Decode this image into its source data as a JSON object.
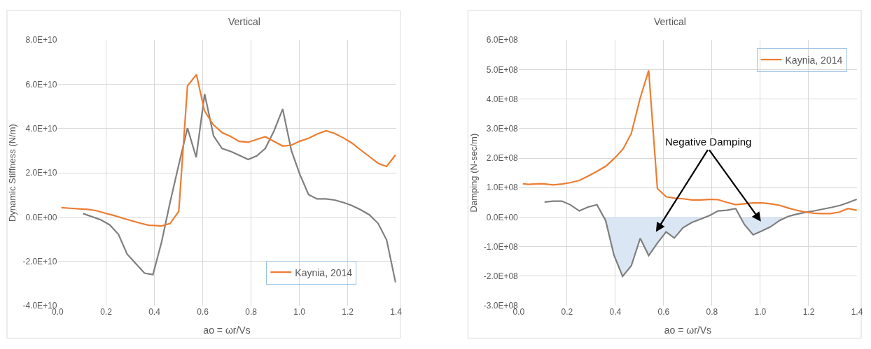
{
  "chart_data": [
    {
      "type": "line",
      "title": "Vertical",
      "xlabel": "ao = ωr/Vs",
      "ylabel": "Dynamic Stiffness (N/m)",
      "xlim": [
        0,
        1.4
      ],
      "xticks": [
        {
          "value": 0,
          "label": "0.0"
        },
        {
          "value": 0.2,
          "label": "0.2"
        },
        {
          "value": 0.4,
          "label": "0.4"
        },
        {
          "value": 0.6,
          "label": "0.6"
        },
        {
          "value": 0.8,
          "label": "0.8"
        },
        {
          "value": 1.0,
          "label": "1.0"
        },
        {
          "value": 1.2,
          "label": "1.2"
        },
        {
          "value": 1.4,
          "label": "1.4"
        }
      ],
      "ylim": [
        -40000000000.0,
        80000000000.0
      ],
      "yticks": [
        {
          "value": -40000000000.0,
          "label": "-4.0E+10"
        },
        {
          "value": -20000000000.0,
          "label": "-2.0E+10"
        },
        {
          "value": 0,
          "label": "0.0E+00"
        },
        {
          "value": 20000000000.0,
          "label": "2.0E+10"
        },
        {
          "value": 40000000000.0,
          "label": "4.0E+10"
        },
        {
          "value": 60000000000.0,
          "label": "6.0E+10"
        },
        {
          "value": 80000000000.0,
          "label": "8.0E+10"
        }
      ],
      "grid": true,
      "legend": "bottom right",
      "line_style": "solid",
      "marker": "none",
      "series": [
        {
          "color": "#7f7f7f",
          "x": [
            0.105,
            0.178,
            0.215,
            0.251,
            0.287,
            0.322,
            0.359,
            0.394,
            0.43,
            0.465,
            0.501,
            0.537,
            0.573,
            0.608,
            0.645,
            0.68,
            0.716,
            0.751,
            0.788,
            0.824,
            0.859,
            0.895,
            0.931,
            0.967,
            1.002,
            1.038,
            1.073,
            1.11,
            1.146,
            1.182,
            1.218,
            1.254,
            1.29,
            1.326,
            1.361,
            1.398
          ],
          "values": [
            1600000000.0,
            -1200000000.0,
            -3500000000.0,
            -7700000000.0,
            -16700000000.0,
            -20900000000.0,
            -25300000000.0,
            -26000000000.0,
            -11200000000.0,
            6700000000.0,
            23700000000.0,
            40200000000.0,
            27000000000.0,
            55600000000.0,
            36700000000.0,
            31000000000.0,
            29700000000.0,
            27900000000.0,
            26000000000.0,
            27700000000.0,
            31000000000.0,
            38900000000.0,
            48800000000.0,
            30000000000.0,
            19300000000.0,
            10200000000.0,
            8200000000.0,
            8200000000.0,
            7700000000.0,
            6600000000.0,
            5200000000.0,
            3300000000.0,
            1000000000.0,
            -2900000000.0,
            -10300000000.0,
            -29500000000.0
          ]
        },
        {
          "name": "Kaynia, 2014",
          "color": "#ed7d31",
          "x": [
            0.015,
            0.05,
            0.088,
            0.124,
            0.16,
            0.196,
            0.233,
            0.269,
            0.305,
            0.341,
            0.377,
            0.399,
            0.429,
            0.465,
            0.501,
            0.537,
            0.574,
            0.607,
            0.643,
            0.68,
            0.716,
            0.751,
            0.788,
            0.824,
            0.859,
            0.895,
            0.931,
            0.967,
            1.002,
            1.038,
            1.073,
            1.11,
            1.146,
            1.182,
            1.218,
            1.254,
            1.29,
            1.326,
            1.361,
            1.398
          ],
          "values": [
            4300000000.0,
            4000000000.0,
            3700000000.0,
            3500000000.0,
            2900000000.0,
            1800000000.0,
            700000000.0,
            -500000000.0,
            -1600000000.0,
            -2700000000.0,
            -3700000000.0,
            -3800000000.0,
            -4000000000.0,
            -2900000000.0,
            2600000000.0,
            59300000000.0,
            64400000000.0,
            48100000000.0,
            41800000000.0,
            38200000000.0,
            36400000000.0,
            34200000000.0,
            33800000000.0,
            35100000000.0,
            36300000000.0,
            34200000000.0,
            32100000000.0,
            32500000000.0,
            34300000000.0,
            35600000000.0,
            37500000000.0,
            39000000000.0,
            37800000000.0,
            35800000000.0,
            33400000000.0,
            30300000000.0,
            27300000000.0,
            24300000000.0,
            22900000000.0,
            28100000000.0
          ]
        }
      ]
    },
    {
      "type": "line",
      "title": "Vertical",
      "xlabel": "ao = ωr/Vs",
      "ylabel": "Damping (N-sec/m)",
      "xlim": [
        0,
        1.4
      ],
      "xticks": [
        {
          "value": 0,
          "label": "0.0"
        },
        {
          "value": 0.2,
          "label": "0.2"
        },
        {
          "value": 0.4,
          "label": "0.4"
        },
        {
          "value": 0.6,
          "label": "0.6"
        },
        {
          "value": 0.8,
          "label": "0.8"
        },
        {
          "value": 1.0,
          "label": "1.0"
        },
        {
          "value": 1.2,
          "label": "1.2"
        },
        {
          "value": 1.4,
          "label": "1.4"
        }
      ],
      "ylim": [
        -300000000.0,
        600000000.0
      ],
      "yticks": [
        {
          "value": -300000000.0,
          "label": "-3.0E+08"
        },
        {
          "value": -200000000.0,
          "label": "-2.0E+08"
        },
        {
          "value": -100000000.0,
          "label": "-1.0E+08"
        },
        {
          "value": 0,
          "label": "0.0E+00"
        },
        {
          "value": 100000000.0,
          "label": "1.0E+08"
        },
        {
          "value": 200000000.0,
          "label": "2.0E+08"
        },
        {
          "value": 300000000.0,
          "label": "3.0E+08"
        },
        {
          "value": 400000000.0,
          "label": "4.0E+08"
        },
        {
          "value": 500000000.0,
          "label": "5.0E+08"
        },
        {
          "value": 600000000.0,
          "label": "6.0E+08"
        }
      ],
      "grid": true,
      "legend": "top right",
      "line_style": "solid",
      "marker": "none",
      "annotations": [
        "Negative Damping"
      ],
      "series": [
        {
          "type": "area",
          "color": "#dae6f3",
          "x": [
            0.356,
            0.394,
            0.43,
            0.466,
            0.503,
            0.538,
            0.574,
            0.61,
            0.644,
            0.68,
            0.717,
            0.753,
            0.78
          ],
          "values": [
            0,
            -128000000.0,
            -201000000.0,
            -165000000.0,
            -72000000.0,
            -130000000.0,
            -88000000.0,
            -50000000.0,
            -71000000.0,
            -36000000.0,
            -18000000.0,
            -7000000.0,
            0
          ]
        },
        {
          "type": "area",
          "color": "#dae6f3",
          "x": [
            0.915,
            0.934,
            0.97,
            1.006,
            1.042,
            1.079,
            1.09
          ],
          "values": [
            0,
            -25000000.0,
            -60000000.0,
            -47000000.0,
            -33000000.0,
            -12000000.0,
            0
          ]
        },
        {
          "color": "#7f7f7f",
          "x": [
            0.107,
            0.143,
            0.179,
            0.215,
            0.251,
            0.287,
            0.324,
            0.36,
            0.394,
            0.43,
            0.466,
            0.503,
            0.538,
            0.574,
            0.61,
            0.644,
            0.68,
            0.717,
            0.753,
            0.789,
            0.825,
            0.861,
            0.898,
            0.934,
            0.97,
            1.006,
            1.042,
            1.079,
            1.115,
            1.151,
            1.187,
            1.223,
            1.259,
            1.295,
            1.332,
            1.363,
            1.399
          ],
          "values": [
            51000000.0,
            54000000.0,
            54000000.0,
            41000000.0,
            21000000.0,
            34000000.0,
            42000000.0,
            -12000000.0,
            -128000000.0,
            -201000000.0,
            -165000000.0,
            -72000000.0,
            -130000000.0,
            -88000000.0,
            -50000000.0,
            -71000000.0,
            -36000000.0,
            -18000000.0,
            -7000000.0,
            5000000.0,
            21000000.0,
            23000000.0,
            29000000.0,
            -25000000.0,
            -60000000.0,
            -47000000.0,
            -33000000.0,
            -12000000.0,
            2000000.0,
            10000000.0,
            16000000.0,
            21000000.0,
            27000000.0,
            33000000.0,
            40000000.0,
            49000000.0,
            60000000.0
          ]
        },
        {
          "name": "Kaynia, 2014",
          "color": "#ed7d31",
          "x": [
            0.017,
            0.039,
            0.065,
            0.096,
            0.143,
            0.179,
            0.215,
            0.251,
            0.287,
            0.324,
            0.36,
            0.396,
            0.432,
            0.466,
            0.502,
            0.538,
            0.574,
            0.61,
            0.646,
            0.681,
            0.717,
            0.753,
            0.789,
            0.825,
            0.861,
            0.898,
            0.934,
            0.97,
            1.006,
            1.042,
            1.079,
            1.115,
            1.151,
            1.187,
            1.223,
            1.254,
            1.29,
            1.327,
            1.363,
            1.399
          ],
          "values": [
            113000000.0,
            111000000.0,
            112000000.0,
            113000000.0,
            109000000.0,
            112000000.0,
            117000000.0,
            124000000.0,
            139000000.0,
            155000000.0,
            172000000.0,
            199000000.0,
            231000000.0,
            283000000.0,
            401000000.0,
            497000000.0,
            97000000.0,
            69000000.0,
            64000000.0,
            62000000.0,
            58000000.0,
            58000000.0,
            60000000.0,
            59000000.0,
            50000000.0,
            42000000.0,
            45000000.0,
            48000000.0,
            48000000.0,
            45000000.0,
            40000000.0,
            31000000.0,
            23000000.0,
            17000000.0,
            13000000.0,
            12000000.0,
            12000000.0,
            17000000.0,
            29000000.0,
            23000000.0
          ]
        }
      ]
    }
  ]
}
